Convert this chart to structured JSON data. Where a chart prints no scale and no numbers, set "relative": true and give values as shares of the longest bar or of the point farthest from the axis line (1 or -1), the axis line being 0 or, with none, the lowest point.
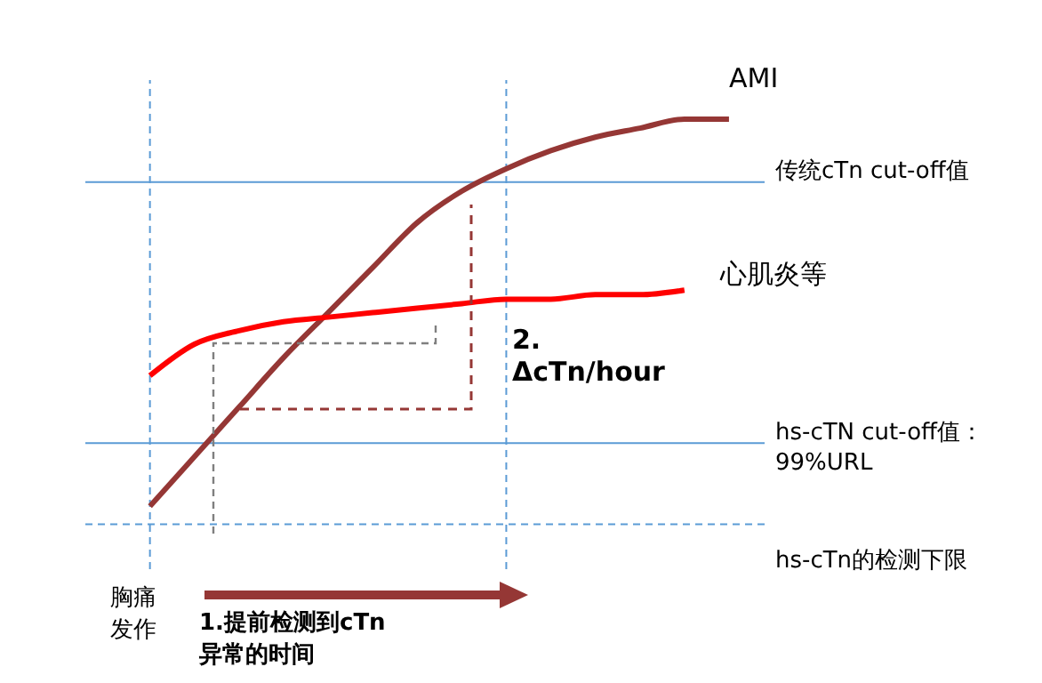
{
  "chart_data": {
    "type": "line",
    "relative": true,
    "marker": "none",
    "line_style": "solid",
    "categories": [
      null,
      null,
      null,
      null,
      null,
      null,
      null,
      null,
      null,
      null,
      null,
      null,
      null,
      null
    ],
    "series": [
      {
        "name": "AMI",
        "color": "#953735",
        "values": [
          0.14,
          0.25,
          0.36,
          0.47,
          0.57,
          0.67,
          0.77,
          0.84,
          0.89,
          0.93,
          0.96,
          0.98,
          1.0,
          1.0
        ]
      },
      {
        "name": "心肌炎等",
        "color": "#ff0000",
        "values": [
          0.43,
          0.5,
          0.53,
          0.55,
          0.56,
          0.57,
          0.58,
          0.59,
          0.6,
          0.6,
          0.61,
          0.61,
          0.62,
          null
        ]
      }
    ],
    "ref_lines": [
      {
        "axis": "y",
        "value": 0.86,
        "label": "传统cTn  cut-off值",
        "color": "#5b9bd5",
        "line_style": "solid"
      },
      {
        "axis": "y",
        "value": 0.28,
        "label": "hs-cTN  cut-off值：\n99%URL",
        "color": "#5b9bd5",
        "line_style": "solid"
      },
      {
        "axis": "y",
        "value": 0.1,
        "label": "hs-cTn的检测下限",
        "color": "#5b9bd5",
        "line_style": "dashed"
      }
    ],
    "annotations": [
      "2.\nΔcTn/hour",
      "胸痛发作",
      "1.提前检测到cTn\n异常的时间"
    ]
  }
}
